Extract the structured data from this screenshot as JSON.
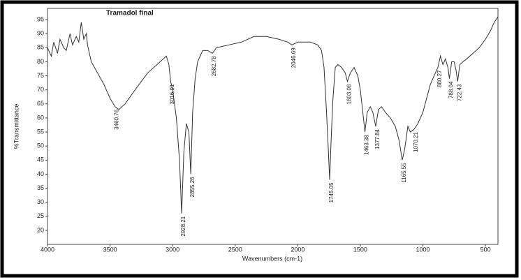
{
  "chart_data": {
    "type": "line",
    "title": "Tramadol final",
    "xlabel": "Wavenumbers (cm-1)",
    "ylabel": "%Transmittance",
    "xlim": [
      4000,
      400
    ],
    "ylim": [
      15,
      99
    ],
    "xticks": [
      4000,
      3500,
      3000,
      2500,
      2000,
      1500,
      1000,
      500
    ],
    "yticks": [
      20,
      25,
      30,
      35,
      40,
      45,
      50,
      55,
      60,
      65,
      70,
      75,
      80,
      85,
      90,
      95
    ],
    "x": [
      4000,
      3970,
      3950,
      3920,
      3900,
      3870,
      3850,
      3820,
      3800,
      3770,
      3750,
      3730,
      3710,
      3690,
      3680,
      3650,
      3600,
      3550,
      3500,
      3460,
      3430,
      3380,
      3300,
      3200,
      3100,
      3050,
      3030,
      3016,
      3000,
      2970,
      2945,
      2928,
      2910,
      2890,
      2870,
      2855,
      2840,
      2820,
      2800,
      2760,
      2720,
      2682,
      2650,
      2550,
      2450,
      2350,
      2250,
      2150,
      2080,
      2046,
      2000,
      1900,
      1840,
      1810,
      1790,
      1770,
      1755,
      1745,
      1735,
      1720,
      1700,
      1680,
      1650,
      1620,
      1603,
      1580,
      1550,
      1520,
      1500,
      1480,
      1463,
      1445,
      1420,
      1400,
      1377,
      1355,
      1330,
      1300,
      1260,
      1220,
      1190,
      1165,
      1145,
      1120,
      1100,
      1070,
      1040,
      1000,
      970,
      940,
      910,
      880,
      860,
      840,
      820,
      800,
      788,
      770,
      750,
      735,
      722,
      705,
      680,
      650,
      600,
      550,
      500,
      460,
      430,
      400
    ],
    "series": [
      {
        "name": "Tramadol final",
        "color": "#333333",
        "values": [
          85,
          82,
          87,
          83,
          88,
          85,
          84,
          90,
          86,
          89,
          87,
          94,
          88,
          90,
          86,
          80,
          76,
          72,
          67,
          64,
          63,
          65,
          70,
          76,
          80,
          82,
          79,
          73,
          70,
          60,
          45,
          26,
          48,
          58,
          55,
          40,
          62,
          74,
          80,
          84,
          84,
          83,
          85,
          86,
          87,
          89,
          89,
          88,
          87,
          86,
          87,
          87,
          86,
          84,
          78,
          62,
          48,
          38,
          50,
          66,
          78,
          79,
          78,
          76,
          73,
          76,
          78,
          75,
          70,
          62,
          55,
          62,
          64,
          62,
          57,
          63,
          64,
          62,
          60,
          57,
          52,
          45,
          49,
          57,
          55,
          56,
          58,
          62,
          67,
          72,
          75,
          78,
          82,
          79,
          81,
          78,
          74,
          80,
          80,
          77,
          73,
          79,
          80,
          81,
          83,
          85,
          88,
          91,
          94,
          96
        ]
      }
    ],
    "peak_labels": [
      3460.76,
      3016.91,
      2928.21,
      2855.26,
      2682.78,
      2046.69,
      1745.05,
      1603.06,
      1463.38,
      1377.84,
      1165.55,
      1070.21,
      880.27,
      788.04,
      722.43
    ],
    "grid": false
  }
}
